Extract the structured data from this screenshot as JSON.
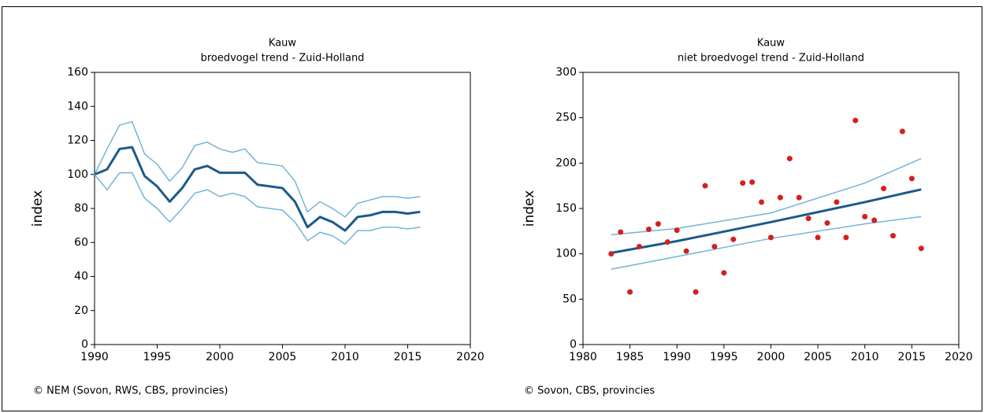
{
  "chart_data": [
    {
      "type": "line",
      "title": "Kauw",
      "subtitle": "broedvogel trend - Zuid-Holland",
      "ylabel": "index",
      "source": "© NEM (Sovon, RWS, CBS, provincies)",
      "x": [
        1990,
        1991,
        1992,
        1993,
        1994,
        1995,
        1996,
        1997,
        1998,
        1999,
        2000,
        2001,
        2002,
        2003,
        2004,
        2005,
        2006,
        2007,
        2008,
        2009,
        2010,
        2011,
        2012,
        2013,
        2014,
        2015,
        2016
      ],
      "series": [
        {
          "color": "#74b4d8",
          "values": [
            100,
            115,
            129,
            131,
            112,
            106,
            96,
            104,
            117,
            119,
            115,
            113,
            115,
            107,
            106,
            105,
            96,
            78,
            84,
            80,
            75,
            83,
            85,
            87,
            87,
            86,
            87
          ]
        },
        {
          "color": "#1d5a8a",
          "values": [
            100,
            103,
            115,
            116,
            99,
            93,
            84,
            92,
            103,
            105,
            101,
            101,
            101,
            94,
            93,
            92,
            84,
            69,
            75,
            72,
            67,
            75,
            76,
            78,
            78,
            77,
            78
          ]
        },
        {
          "color": "#74b4d8",
          "values": [
            100,
            91,
            101,
            101,
            86,
            80,
            72,
            80,
            89,
            91,
            87,
            89,
            87,
            81,
            80,
            79,
            72,
            61,
            66,
            64,
            59,
            67,
            67,
            69,
            69,
            68,
            69
          ]
        }
      ],
      "xlim": [
        1990,
        2020
      ],
      "xticks": [
        1990,
        1995,
        2000,
        2005,
        2010,
        2015,
        2020
      ],
      "ylim": [
        0,
        160
      ],
      "yticks": [
        0,
        20,
        40,
        60,
        80,
        100,
        120,
        140,
        160
      ]
    },
    {
      "type": "scatter",
      "title": "Kauw",
      "subtitle": "niet broedvogel trend - Zuid-Holland",
      "ylabel": "index",
      "source": "© Sovon, CBS, provincies",
      "x": [
        1983,
        1984,
        1985,
        1986,
        1987,
        1988,
        1989,
        1990,
        1991,
        1992,
        1993,
        1994,
        1995,
        1996,
        1997,
        1998,
        1999,
        2000,
        2001,
        2002,
        2003,
        2004,
        2005,
        2006,
        2007,
        2008,
        2009,
        2010,
        2011,
        2012,
        2013,
        2014,
        2015,
        2016
      ],
      "values": [
        100,
        124,
        58,
        108,
        127,
        133,
        113,
        126,
        103,
        58,
        175,
        108,
        79,
        116,
        178,
        179,
        157,
        118,
        162,
        205,
        162,
        139,
        118,
        134,
        157,
        118,
        247,
        141,
        137,
        172,
        120,
        235,
        183,
        106
      ],
      "color": "#d42020",
      "fit": {
        "x": [
          1983,
          1990,
          2000,
          2010,
          2016
        ],
        "series": [
          {
            "color": "#74b4d8",
            "values": [
              121,
              128,
              145,
              178,
              205
            ]
          },
          {
            "color": "#1d5a8a",
            "values": [
              101,
              114,
              135,
              157,
              171
            ]
          },
          {
            "color": "#74b4d8",
            "values": [
              83,
              97,
              117,
              133,
              141
            ]
          }
        ]
      },
      "xlim": [
        1980,
        2020
      ],
      "xticks": [
        1980,
        1985,
        1990,
        1995,
        2000,
        2005,
        2010,
        2015,
        2020
      ],
      "ylim": [
        0,
        300
      ],
      "yticks": [
        0,
        50,
        100,
        150,
        200,
        250,
        300
      ]
    }
  ]
}
